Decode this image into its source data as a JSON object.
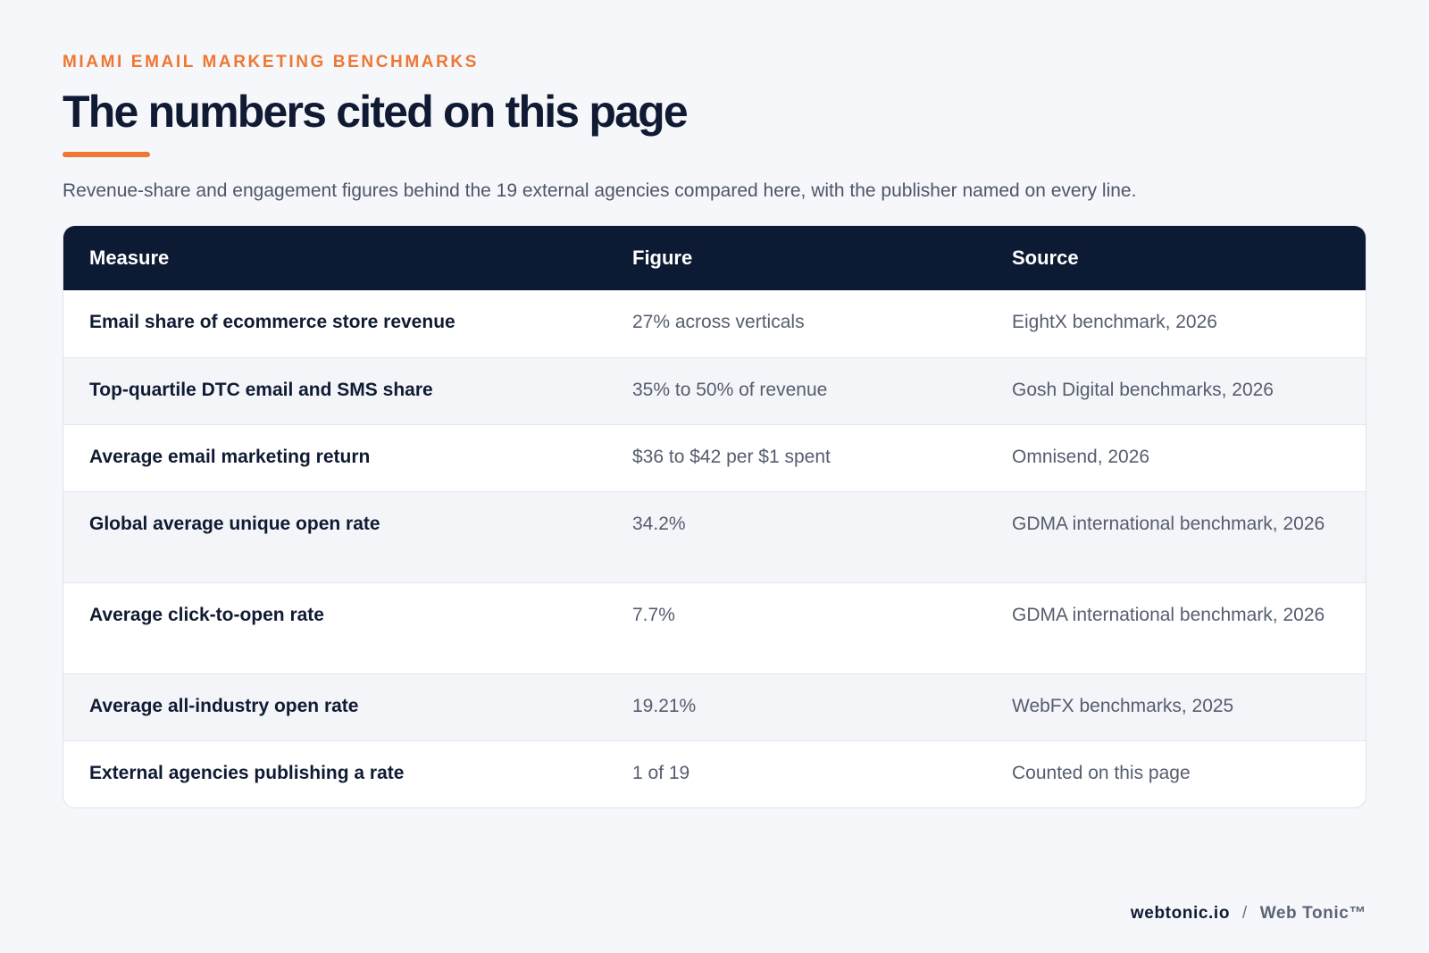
{
  "header": {
    "eyebrow": "MIAMI EMAIL MARKETING BENCHMARKS",
    "title": "The numbers cited on this page",
    "lede": "Revenue-share and engagement figures behind the 19 external agencies compared here, with the publisher named on every line."
  },
  "table": {
    "columns": [
      "Measure",
      "Figure",
      "Source"
    ],
    "rows": [
      {
        "measure": "Email share of ecommerce store revenue",
        "figure": "27% across verticals",
        "source": "EightX benchmark, 2026"
      },
      {
        "measure": "Top-quartile DTC email and SMS share",
        "figure": "35% to 50% of revenue",
        "source": "Gosh Digital benchmarks, 2026"
      },
      {
        "measure": "Average email marketing return",
        "figure": "$36 to $42 per $1 spent",
        "source": "Omnisend, 2026"
      },
      {
        "measure": "Global average unique open rate",
        "figure": "34.2%",
        "source": "GDMA international benchmark, 2026"
      },
      {
        "measure": "Average click-to-open rate",
        "figure": "7.7%",
        "source": "GDMA international benchmark, 2026"
      },
      {
        "measure": "Average all-industry open rate",
        "figure": "19.21%",
        "source": "WebFX benchmarks, 2025"
      },
      {
        "measure": "External agencies publishing a rate",
        "figure": "1 of 19",
        "source": "Counted on this page"
      }
    ]
  },
  "footer": {
    "site": "webtonic.io",
    "separator": "/",
    "brand": "Web Tonic™"
  },
  "colors": {
    "accent": "#ee7733",
    "header_bg": "#0d1a33",
    "page_bg": "#f5f7fa"
  }
}
